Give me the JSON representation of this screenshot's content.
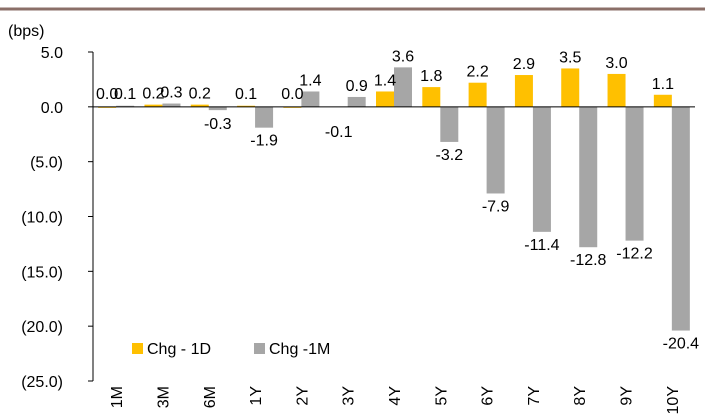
{
  "chart_data": {
    "type": "bar",
    "unit_label": "(bps)",
    "categories": [
      "1M",
      "3M",
      "6M",
      "1Y",
      "2Y",
      "3Y",
      "4Y",
      "5Y",
      "6Y",
      "7Y",
      "8Y",
      "9Y",
      "10Y"
    ],
    "series": [
      {
        "name": "Chg - 1D",
        "color": "#FFC000",
        "values": [
          0.0,
          0.2,
          0.2,
          0.1,
          0.0,
          null,
          1.4,
          1.8,
          2.2,
          2.9,
          3.5,
          3.0,
          1.1
        ],
        "labels": [
          "0.0",
          "0.2",
          "0.2",
          "0.1",
          "0.0",
          "",
          "1.4",
          "1.8",
          "2.2",
          "2.9",
          "3.5",
          "3.0",
          "1.1"
        ]
      },
      {
        "name": "Chg -1M",
        "color": "#A6A6A6",
        "values": [
          0.1,
          0.3,
          -0.3,
          -1.9,
          1.4,
          0.9,
          3.6,
          -3.2,
          -7.9,
          -11.4,
          -12.8,
          -12.2,
          -20.4
        ],
        "labels": [
          "0.1",
          "0.3",
          "-0.3",
          "-1.9",
          "1.4",
          "0.9",
          "3.6",
          "-3.2",
          "-7.9",
          "-11.4",
          "-12.8",
          "-12.2",
          "-20.4"
        ]
      }
    ],
    "extra_labels": [
      "-0.1"
    ],
    "ylim": [
      -25,
      5
    ],
    "yticks": [
      5,
      0,
      -5,
      -10,
      -15,
      -20,
      -25
    ],
    "ytick_labels": [
      "5.0",
      "0.0",
      "(5.0)",
      "(10.0)",
      "(15.0)",
      "(20.0)",
      "(25.0)"
    ],
    "legend": "bottom-left",
    "grid": false,
    "top_rule_color": "#8B6F68"
  }
}
